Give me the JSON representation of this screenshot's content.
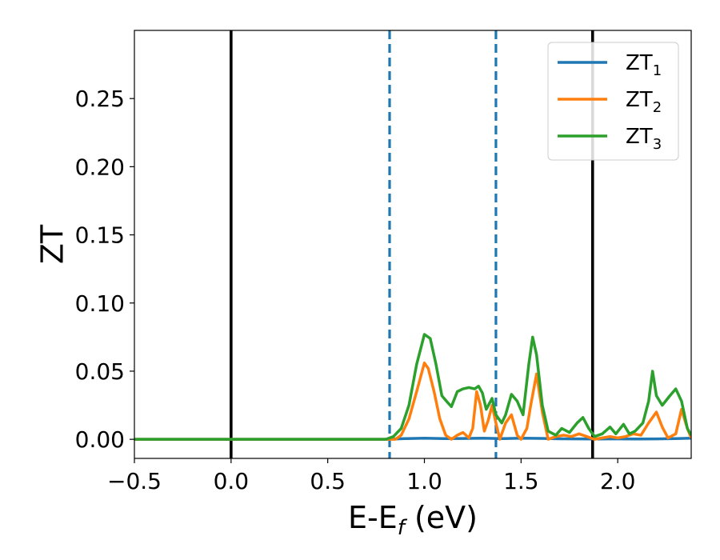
{
  "chart_data": {
    "type": "line",
    "xlabel": "E-E",
    "xlabel_sub": "f",
    "xlabel_unit": " (eV)",
    "ylabel": "ZT",
    "xlim": [
      -0.5,
      2.38
    ],
    "ylim": [
      -0.014,
      0.3
    ],
    "xticks": [
      -0.5,
      0.0,
      0.5,
      1.0,
      1.5,
      2.0
    ],
    "xtick_labels": [
      "−0.5",
      "0.0",
      "0.5",
      "1.0",
      "1.5",
      "2.0"
    ],
    "yticks": [
      0.0,
      0.05,
      0.1,
      0.15,
      0.2,
      0.25
    ],
    "ytick_labels": [
      "0.00",
      "0.05",
      "0.10",
      "0.15",
      "0.20",
      "0.25"
    ],
    "grid": false,
    "legend_position": "top-right",
    "vlines": [
      {
        "x": 0.0,
        "style": "solid",
        "color": "#000000"
      },
      {
        "x": 1.87,
        "style": "solid",
        "color": "#000000"
      },
      {
        "x": 0.82,
        "style": "dashed",
        "color": "#1f77b4"
      },
      {
        "x": 1.37,
        "style": "dashed",
        "color": "#1f77b4"
      }
    ],
    "series": [
      {
        "name": "ZT",
        "name_sub": "1",
        "color": "#1f77b4",
        "points": [
          [
            -0.5,
            0
          ],
          [
            0.8,
            0
          ],
          [
            0.9,
            0.0005
          ],
          [
            1.0,
            0.0008
          ],
          [
            1.1,
            0.0005
          ],
          [
            1.2,
            0.0006
          ],
          [
            1.3,
            0.0008
          ],
          [
            1.4,
            0.0005
          ],
          [
            1.5,
            0.0008
          ],
          [
            1.6,
            0.0007
          ],
          [
            1.7,
            0.0004
          ],
          [
            1.8,
            0.0003
          ],
          [
            1.9,
            0.0002
          ],
          [
            2.0,
            0.0003
          ],
          [
            2.1,
            0.0002
          ],
          [
            2.2,
            0.0003
          ],
          [
            2.3,
            0.0005
          ],
          [
            2.38,
            0.0008
          ]
        ]
      },
      {
        "name": "ZT",
        "name_sub": "2",
        "color": "#ff7f0e",
        "points": [
          [
            -0.5,
            0
          ],
          [
            0.85,
            0
          ],
          [
            0.88,
            0.003
          ],
          [
            0.92,
            0.015
          ],
          [
            0.96,
            0.035
          ],
          [
            1.0,
            0.056
          ],
          [
            1.02,
            0.052
          ],
          [
            1.05,
            0.035
          ],
          [
            1.08,
            0.015
          ],
          [
            1.11,
            0.003
          ],
          [
            1.14,
            0.0
          ],
          [
            1.17,
            0.003
          ],
          [
            1.2,
            0.005
          ],
          [
            1.23,
            0.001
          ],
          [
            1.25,
            0.008
          ],
          [
            1.27,
            0.035
          ],
          [
            1.29,
            0.025
          ],
          [
            1.31,
            0.006
          ],
          [
            1.33,
            0.014
          ],
          [
            1.35,
            0.025
          ],
          [
            1.37,
            0.012
          ],
          [
            1.39,
            0.0
          ],
          [
            1.42,
            0.012
          ],
          [
            1.45,
            0.018
          ],
          [
            1.48,
            0.003
          ],
          [
            1.5,
            0.0
          ],
          [
            1.53,
            0.008
          ],
          [
            1.55,
            0.025
          ],
          [
            1.58,
            0.048
          ],
          [
            1.61,
            0.02
          ],
          [
            1.64,
            0.0
          ],
          [
            1.68,
            0.002
          ],
          [
            1.72,
            0.003
          ],
          [
            1.76,
            0.002
          ],
          [
            1.8,
            0.004
          ],
          [
            1.84,
            0.002
          ],
          [
            1.88,
            0.0
          ],
          [
            1.92,
            0.001
          ],
          [
            1.96,
            0.002
          ],
          [
            2.0,
            0.001
          ],
          [
            2.04,
            0.002
          ],
          [
            2.08,
            0.004
          ],
          [
            2.12,
            0.003
          ],
          [
            2.16,
            0.012
          ],
          [
            2.2,
            0.02
          ],
          [
            2.23,
            0.009
          ],
          [
            2.26,
            0.001
          ],
          [
            2.3,
            0.004
          ],
          [
            2.33,
            0.022
          ],
          [
            2.36,
            0.008
          ],
          [
            2.38,
            0.001
          ]
        ]
      },
      {
        "name": "ZT",
        "name_sub": "3",
        "color": "#2ca02c",
        "points": [
          [
            -0.5,
            0
          ],
          [
            0.8,
            0
          ],
          [
            0.84,
            0.002
          ],
          [
            0.88,
            0.008
          ],
          [
            0.92,
            0.025
          ],
          [
            0.96,
            0.055
          ],
          [
            1.0,
            0.077
          ],
          [
            1.03,
            0.074
          ],
          [
            1.06,
            0.055
          ],
          [
            1.09,
            0.032
          ],
          [
            1.12,
            0.027
          ],
          [
            1.14,
            0.024
          ],
          [
            1.17,
            0.035
          ],
          [
            1.2,
            0.037
          ],
          [
            1.23,
            0.038
          ],
          [
            1.26,
            0.037
          ],
          [
            1.28,
            0.039
          ],
          [
            1.3,
            0.034
          ],
          [
            1.32,
            0.022
          ],
          [
            1.35,
            0.03
          ],
          [
            1.37,
            0.018
          ],
          [
            1.4,
            0.012
          ],
          [
            1.42,
            0.018
          ],
          [
            1.45,
            0.033
          ],
          [
            1.48,
            0.028
          ],
          [
            1.51,
            0.018
          ],
          [
            1.54,
            0.055
          ],
          [
            1.56,
            0.075
          ],
          [
            1.58,
            0.062
          ],
          [
            1.61,
            0.025
          ],
          [
            1.64,
            0.006
          ],
          [
            1.68,
            0.003
          ],
          [
            1.71,
            0.008
          ],
          [
            1.75,
            0.005
          ],
          [
            1.79,
            0.012
          ],
          [
            1.82,
            0.016
          ],
          [
            1.85,
            0.008
          ],
          [
            1.88,
            0.002
          ],
          [
            1.92,
            0.004
          ],
          [
            1.96,
            0.009
          ],
          [
            1.99,
            0.004
          ],
          [
            2.03,
            0.011
          ],
          [
            2.06,
            0.004
          ],
          [
            2.09,
            0.006
          ],
          [
            2.13,
            0.012
          ],
          [
            2.16,
            0.028
          ],
          [
            2.18,
            0.05
          ],
          [
            2.2,
            0.032
          ],
          [
            2.23,
            0.025
          ],
          [
            2.27,
            0.032
          ],
          [
            2.3,
            0.037
          ],
          [
            2.33,
            0.028
          ],
          [
            2.36,
            0.008
          ],
          [
            2.38,
            0.003
          ]
        ]
      }
    ]
  }
}
